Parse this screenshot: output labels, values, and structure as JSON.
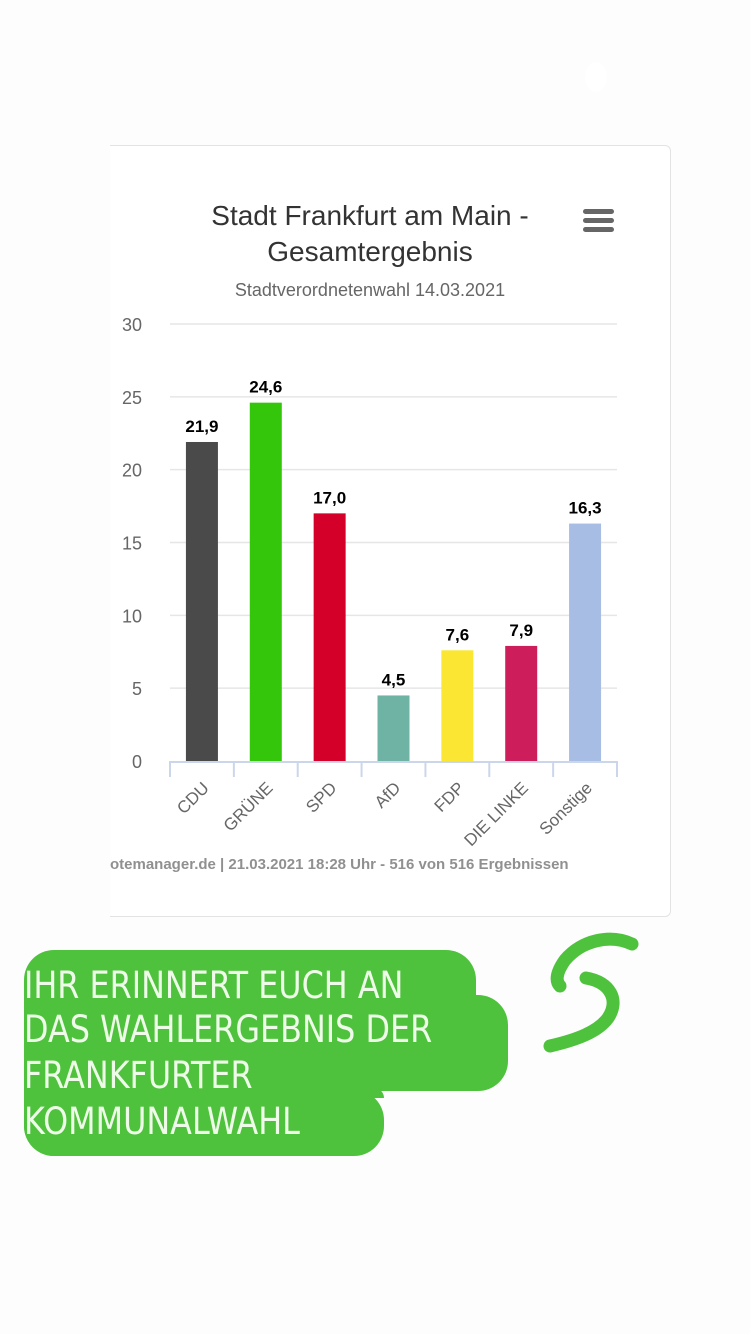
{
  "card": {
    "title_line1": "Stadt Frankfurt am Main -",
    "title_line2": "Gesamtergebnis",
    "subtitle": "Stadtverordnetenwahl 14.03.2021",
    "menu_icon": "hamburger-menu-icon",
    "credit": "otemanager.de | 21.03.2021 18:28 Uhr - 516 von 516 Ergebnissen"
  },
  "chart_data": {
    "type": "bar",
    "title": "Stadt Frankfurt am Main - Gesamtergebnis",
    "subtitle": "Stadtverordnetenwahl 14.03.2021",
    "xlabel": "",
    "ylabel": "",
    "ylim": [
      0,
      30
    ],
    "yticks": [
      0,
      5,
      10,
      15,
      20,
      25,
      30
    ],
    "grid": true,
    "legend": "none",
    "categories": [
      "CDU",
      "GRÜNE",
      "SPD",
      "AfD",
      "FDP",
      "DIE LINKE",
      "Sonstige"
    ],
    "values": [
      21.9,
      24.6,
      17.0,
      4.5,
      7.6,
      7.9,
      16.3
    ],
    "data_labels": [
      "21,9",
      "24,6",
      "17,0",
      "4,5",
      "7,6",
      "7,9",
      "16,3"
    ],
    "colors": [
      "#4a4a4a",
      "#33c60a",
      "#d50029",
      "#6fb3a4",
      "#fbe733",
      "#cd1e5b",
      "#a8bde3"
    ]
  },
  "caption": {
    "lines": [
      "IHR ERINNERT EUCH AN",
      "DAS WAHLERGEBNIS DER",
      "FRANKFURTER",
      "KOMMUNALWAHL"
    ],
    "bg_color": "#4fc23d",
    "text_color": "#eefbe8"
  },
  "decoration": {
    "icon": "green-squiggle-icon",
    "color": "#4fc23d"
  }
}
